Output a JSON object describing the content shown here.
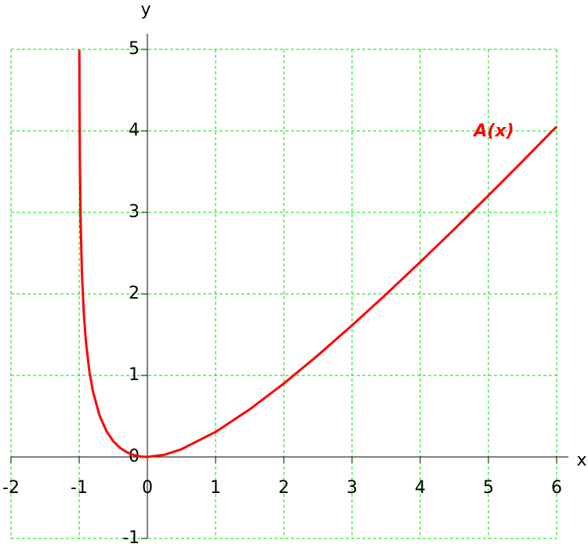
{
  "chart_data": {
    "type": "line",
    "x_label": "x",
    "y_label": "y",
    "annotation": "A(x)",
    "xlim": [
      -2,
      6
    ],
    "ylim": [
      -1,
      5
    ],
    "xticks": [
      -2,
      -1,
      0,
      1,
      2,
      3,
      4,
      5,
      6
    ],
    "yticks": [
      -1,
      0,
      1,
      2,
      3,
      4,
      5
    ],
    "grid": true,
    "series": [
      {
        "name": "A(x)",
        "color": "#ff0000",
        "x": [
          -0.9975,
          -0.995,
          -0.99,
          -0.98,
          -0.96,
          -0.93,
          -0.9,
          -0.85,
          -0.8,
          -0.7,
          -0.6,
          -0.5,
          -0.4,
          -0.3,
          -0.2,
          -0.1,
          0,
          0.25,
          0.5,
          1,
          1.5,
          2,
          2.5,
          3,
          3.5,
          4,
          4.5,
          5,
          5.5,
          6
        ],
        "values": [
          4.994,
          4.303,
          3.615,
          2.932,
          2.259,
          1.729,
          1.403,
          1.047,
          0.809,
          0.504,
          0.316,
          0.193,
          0.111,
          0.057,
          0.023,
          0.005,
          0,
          0.027,
          0.095,
          0.307,
          0.584,
          0.901,
          1.247,
          1.614,
          1.996,
          2.391,
          2.795,
          3.208,
          3.628,
          4.054
        ]
      }
    ]
  }
}
